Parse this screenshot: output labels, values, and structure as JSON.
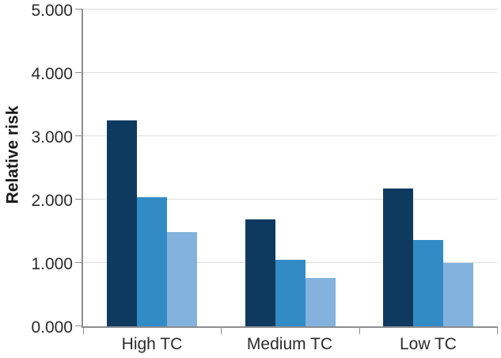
{
  "chart_data": {
    "type": "bar",
    "title": "",
    "xlabel": "",
    "ylabel": "Relative risk",
    "categories": [
      "High TC",
      "Medium TC",
      "Low TC"
    ],
    "series": [
      {
        "name": "dark-navy-series",
        "color": "#0f3a60",
        "values": [
          3.25,
          1.69,
          2.18
        ]
      },
      {
        "name": "medium-blue-series",
        "color": "#338bc6",
        "values": [
          2.04,
          1.05,
          1.36
        ]
      },
      {
        "name": "light-blue-series",
        "color": "#82b2dd",
        "values": [
          1.49,
          0.76,
          1.0
        ]
      }
    ],
    "ylim": [
      0,
      5
    ],
    "ytick_labels": [
      "0.000",
      "1.000",
      "2.000",
      "3.000",
      "4.000",
      "5.000"
    ],
    "grid": "horizontal",
    "legend": "none",
    "colors": {
      "axis": "#8e8e8e",
      "gridline": "#dedede",
      "tick_text": "#2b2b2b",
      "axis_title_text": "#1a1a1a"
    }
  }
}
